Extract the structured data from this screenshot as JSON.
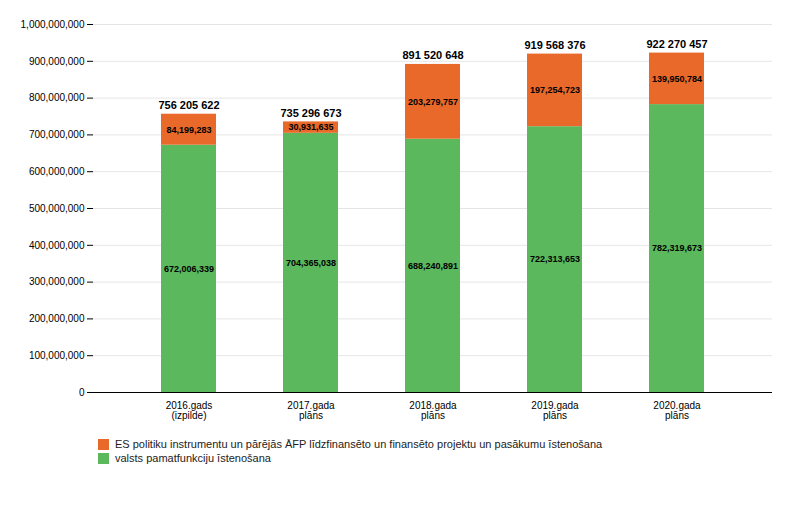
{
  "chart_data": {
    "type": "bar",
    "stacked": true,
    "categories": [
      "2016.gads\n(izpilde)",
      "2017.gada\nplāns",
      "2018.gada\nplāns",
      "2019.gada\nplāns",
      "2020.gada\nplāns"
    ],
    "series": [
      {
        "name": "valsts pamatfunkciju īstenošana",
        "color": "#5cb85c",
        "values": [
          672006339,
          704365038,
          688240891,
          722313653,
          782319673
        ],
        "value_labels": [
          "672,006,339",
          "704,365,038",
          "688,240,891",
          "722,313,653",
          "782,319,673"
        ]
      },
      {
        "name": "ES politiku instrumentu un pārējās ĀFP līdzfinansēto un finansēto projektu un pasākumu īstenošana",
        "color": "#e8692a",
        "values": [
          84199283,
          30931635,
          203279757,
          197254723,
          139950784
        ],
        "value_labels": [
          "84,199,283",
          "30,931,635",
          "203,279,757",
          "197,254,723",
          "139,950,784"
        ]
      }
    ],
    "totals": [
      756205622,
      735296673,
      891520648,
      919568376,
      922270457
    ],
    "total_labels": [
      "756 205 622",
      "735 296 673",
      "891 520 648",
      "919 568 376",
      "922 270 457"
    ],
    "ylim": [
      0,
      1000000000
    ],
    "yticks": [
      0,
      {
        "value": 100000000,
        "label": "100,000,000"
      },
      {
        "value": 200000000,
        "label": "200,000,000"
      },
      {
        "value": 300000000,
        "label": "300,000,000"
      },
      {
        "value": 400000000,
        "label": "400,000,000"
      },
      {
        "value": 500000000,
        "label": "500,000,000"
      },
      {
        "value": 600000000,
        "label": "600,000,000"
      },
      {
        "value": 700000000,
        "label": "700,000,000"
      },
      {
        "value": 800000000,
        "label": "800,000,000"
      },
      {
        "value": 900000000,
        "label": "900,000,000"
      },
      {
        "value": 1000000000,
        "label": "1,000,000,000"
      }
    ],
    "grid": true,
    "legend": "bottom",
    "data_labels": true
  }
}
